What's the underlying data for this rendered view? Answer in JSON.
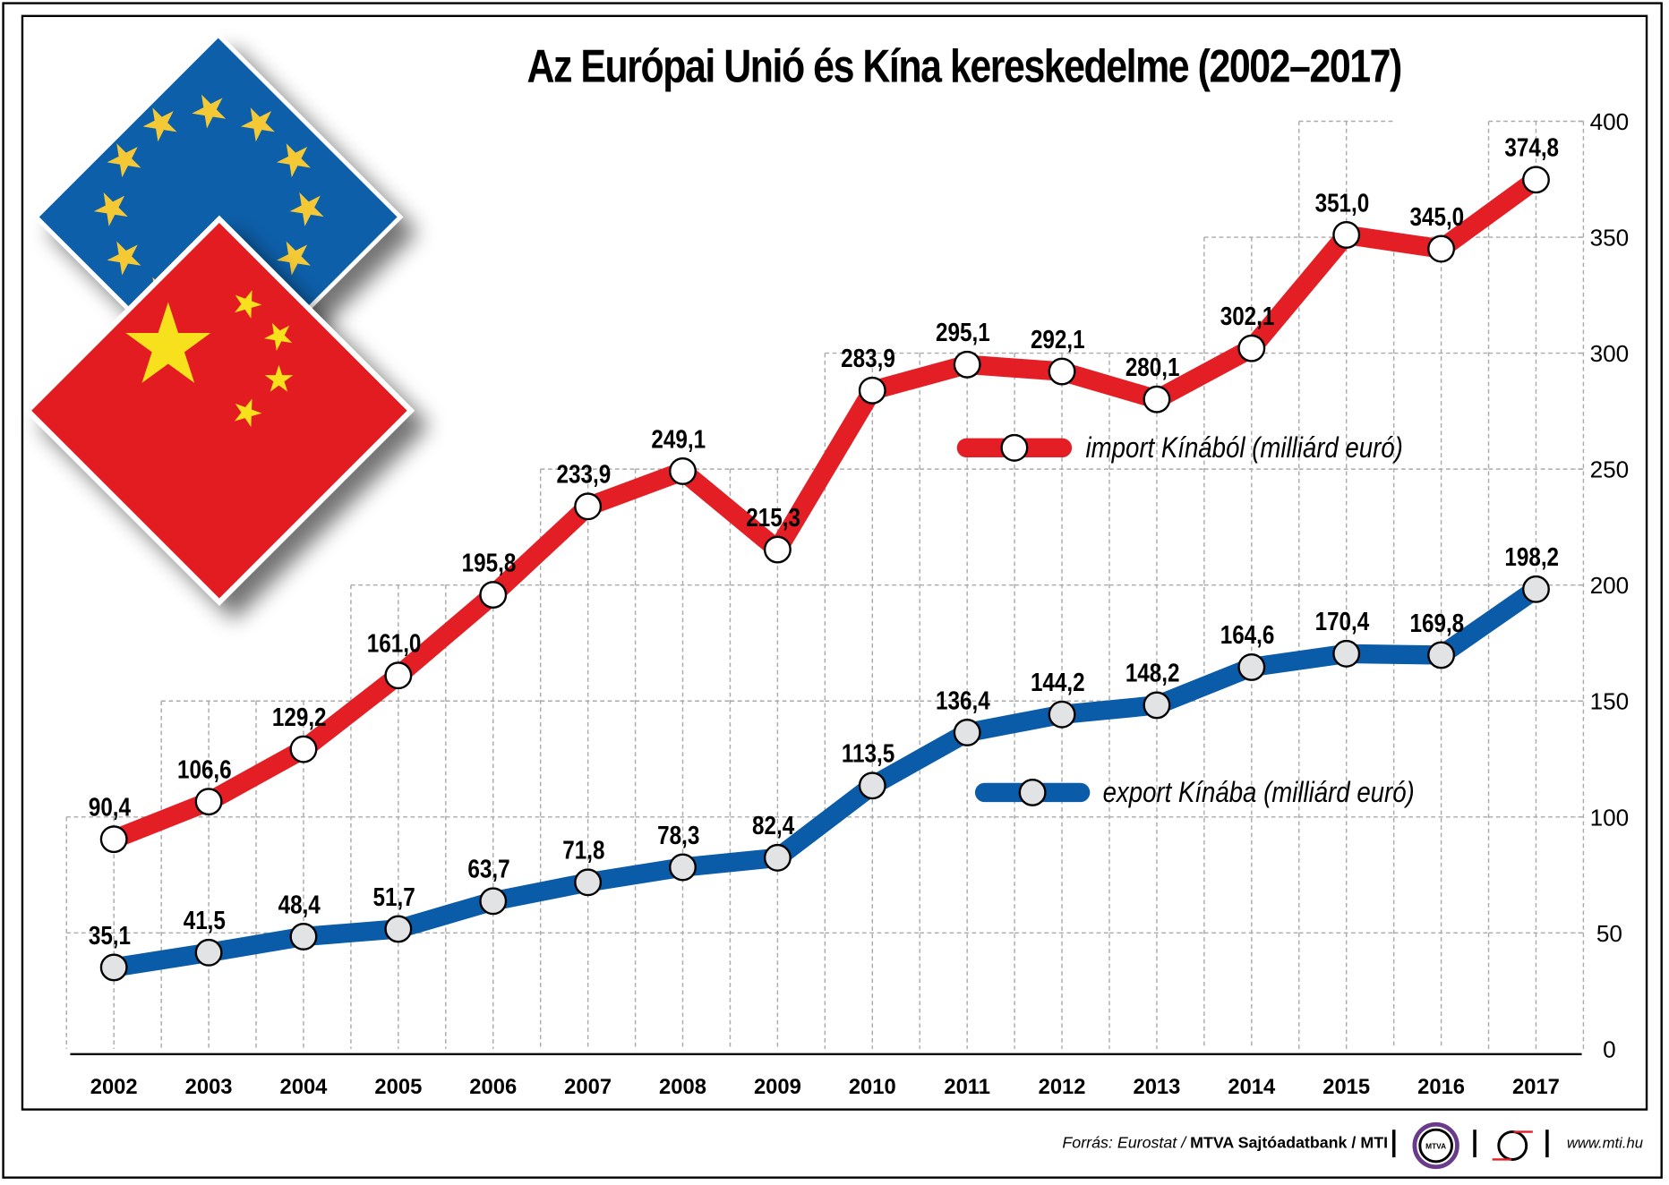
{
  "title": "Az Európai Unió és Kína kereskedelme (2002–2017)",
  "chart_data": {
    "type": "line",
    "title": "Az Európai Unió és Kína kereskedelme (2002–2017)",
    "xlabel": "",
    "ylabel": "",
    "ylim": [
      0,
      400
    ],
    "yticks": [
      "0",
      "50",
      "100",
      "150",
      "200",
      "250",
      "300",
      "350",
      "400"
    ],
    "grid": true,
    "categories": [
      "2002",
      "2003",
      "2004",
      "2005",
      "2006",
      "2007",
      "2008",
      "2009",
      "2010",
      "2011",
      "2012",
      "2013",
      "2014",
      "2015",
      "2016",
      "2017"
    ],
    "series": [
      {
        "name": "import Kínából (milliárd euró)",
        "color": "#e31e24",
        "values": [
          90.4,
          106.6,
          129.2,
          161.0,
          195.8,
          233.9,
          249.1,
          215.3,
          283.9,
          295.1,
          292.1,
          280.1,
          302.1,
          351.0,
          345.0,
          374.8
        ],
        "labels": [
          "90,4",
          "106,6",
          "129,2",
          "161,0",
          "195,8",
          "233,9",
          "249,1",
          "215,3",
          "283,9",
          "295,1",
          "292,1",
          "280,1",
          "302,1",
          "351,0",
          "345,0",
          "374,8"
        ]
      },
      {
        "name": "export Kínába (milliárd euró)",
        "color": "#0a5ba8",
        "values": [
          35.1,
          41.5,
          48.4,
          51.7,
          63.7,
          71.8,
          78.3,
          82.4,
          113.5,
          136.4,
          144.2,
          148.2,
          164.6,
          170.4,
          169.8,
          198.2
        ],
        "labels": [
          "35,1",
          "41,5",
          "48,4",
          "51,7",
          "63,7",
          "71,8",
          "78,3",
          "82,4",
          "113,5",
          "136,4",
          "144,2",
          "148,2",
          "164,6",
          "170,4",
          "169,8",
          "198,2"
        ]
      }
    ],
    "legend_position": "inside-right"
  },
  "legend": {
    "import": "import Kínából (milliárd euró)",
    "export": "export Kínába (milliárd euró)"
  },
  "footer": {
    "source_prefix": "Forrás: Eurostat /",
    "source_bold": "MTVA Sajtóadatbank / MTI",
    "logo1": "MTVA",
    "website": "www.mti.hu"
  },
  "flags": [
    "eu-flag",
    "china-flag"
  ]
}
